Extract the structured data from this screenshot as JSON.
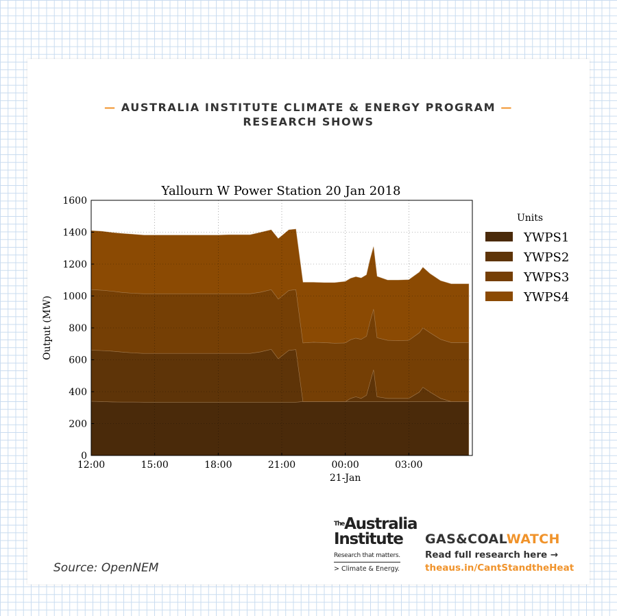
{
  "header": {
    "line1": "AUSTRALIA INSTITUTE CLIMATE & ENERGY PROGRAM",
    "line2": "RESEARCH SHOWS",
    "dash": "—"
  },
  "chart_data": {
    "type": "area",
    "stacked": true,
    "title": "Yallourn W Power Station 20 Jan 2018",
    "xlabel": "21-Jan",
    "ylabel": "Output (MW)",
    "ylim": [
      0,
      1600
    ],
    "yticks": [
      0,
      200,
      400,
      600,
      800,
      1000,
      1200,
      1400,
      1600
    ],
    "xlim": [
      "12:00",
      "06:00"
    ],
    "xticks": [
      "12:00",
      "15:00",
      "18:00",
      "21:00",
      "00:00",
      "03:00"
    ],
    "grid": true,
    "legend": {
      "title": "Units",
      "position": "right"
    },
    "x": [
      "12:00",
      "12:30",
      "13:00",
      "13:30",
      "14:00",
      "14:30",
      "15:00",
      "15:30",
      "16:00",
      "16:30",
      "17:00",
      "17:30",
      "18:00",
      "18:30",
      "19:00",
      "19:30",
      "20:00",
      "20:30",
      "20:50",
      "21:00",
      "21:20",
      "21:40",
      "22:00",
      "22:30",
      "23:00",
      "23:30",
      "00:00",
      "00:15",
      "00:30",
      "00:45",
      "01:00",
      "01:10",
      "01:20",
      "01:30",
      "02:00",
      "02:30",
      "03:00",
      "03:30",
      "03:40",
      "04:00",
      "04:30",
      "05:00",
      "05:30",
      "05:50"
    ],
    "series": [
      {
        "name": "YWPS1",
        "color": "#4a2a0a",
        "values": [
          340,
          338,
          336,
          335,
          335,
          334,
          334,
          334,
          334,
          334,
          334,
          334,
          334,
          334,
          334,
          334,
          334,
          334,
          334,
          334,
          334,
          334,
          338,
          338,
          338,
          338,
          338,
          338,
          338,
          338,
          338,
          338,
          338,
          338,
          338,
          338,
          338,
          338,
          338,
          338,
          338,
          338,
          338,
          338
        ]
      },
      {
        "name": "YWPS2",
        "color": "#5e3408",
        "values": [
          320,
          320,
          318,
          313,
          308,
          306,
          306,
          306,
          306,
          306,
          306,
          306,
          306,
          306,
          306,
          306,
          316,
          332,
          272,
          290,
          325,
          330,
          0,
          0,
          0,
          0,
          0,
          20,
          30,
          20,
          40,
          120,
          200,
          30,
          20,
          20,
          20,
          60,
          90,
          60,
          20,
          0,
          0,
          0
        ]
      },
      {
        "name": "YWPS3",
        "color": "#753f05",
        "values": [
          380,
          378,
          376,
          374,
          374,
          374,
          374,
          374,
          374,
          374,
          374,
          374,
          374,
          374,
          374,
          374,
          374,
          374,
          374,
          374,
          376,
          376,
          368,
          372,
          370,
          366,
          368,
          368,
          368,
          370,
          370,
          380,
          380,
          370,
          364,
          362,
          364,
          372,
          372,
          372,
          370,
          370,
          370,
          370
        ]
      },
      {
        "name": "YWPS4",
        "color": "#8b4a03",
        "values": [
          370,
          370,
          368,
          370,
          370,
          368,
          368,
          368,
          368,
          368,
          368,
          368,
          368,
          370,
          370,
          370,
          375,
          375,
          380,
          380,
          380,
          380,
          380,
          376,
          376,
          380,
          385,
          385,
          385,
          385,
          385,
          390,
          392,
          385,
          378,
          380,
          380,
          380,
          380,
          370,
          368,
          368,
          368,
          368
        ]
      }
    ]
  },
  "source": "Source: OpenNEM",
  "logo": {
    "the": "The",
    "line1": "Australia",
    "line2": "Institute",
    "tagline": "Research that matters.",
    "program": "> Climate & Energy."
  },
  "campaign": {
    "brand_part1": "GAS&COAL",
    "brand_part2": "WATCH",
    "read": "Read full research here →",
    "url": "theaus.in/CantStandtheHeat",
    "brand_color": "#f0932b"
  }
}
